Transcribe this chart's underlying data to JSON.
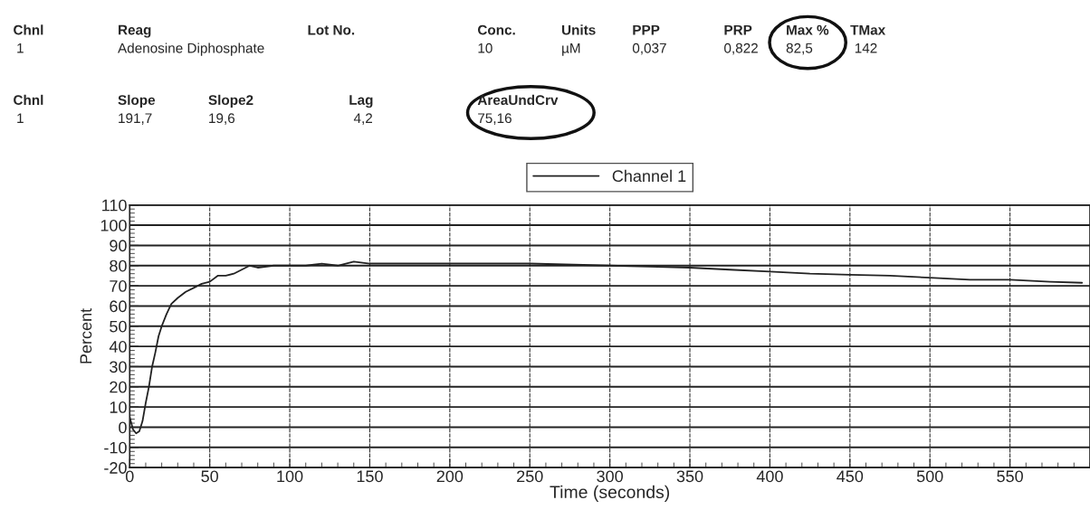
{
  "chart_data": {
    "type": "line",
    "xlabel": "Time (seconds)",
    "ylabel": "Percent",
    "x": [
      0,
      2,
      4,
      6,
      8,
      10,
      12,
      14,
      16,
      18,
      20,
      23,
      26,
      30,
      35,
      40,
      45,
      50,
      55,
      60,
      65,
      70,
      75,
      80,
      90,
      100,
      110,
      120,
      130,
      140,
      150,
      175,
      200,
      250,
      300,
      325,
      350,
      375,
      400,
      425,
      450,
      475,
      500,
      525,
      550,
      575,
      595
    ],
    "series": [
      {
        "name": "Channel 1",
        "color": "#222222",
        "values": [
          5,
          -1,
          -3,
          -2,
          3,
          12,
          20,
          30,
          37,
          45,
          50,
          56,
          61,
          64,
          67,
          69,
          71,
          72,
          75,
          75,
          76,
          78,
          80,
          79,
          80,
          80,
          80,
          81,
          80,
          82,
          81,
          81,
          81,
          81,
          80,
          79.5,
          79,
          78,
          77,
          76,
          75.5,
          75,
          74,
          73,
          73,
          72,
          71.5
        ]
      }
    ],
    "xlim": [
      0,
      600
    ],
    "xticks": [
      0,
      50,
      100,
      150,
      200,
      250,
      300,
      350,
      400,
      450,
      500,
      550
    ],
    "ylim": [
      -20,
      110
    ],
    "yticks": [
      -20,
      -10,
      0,
      10,
      20,
      30,
      40,
      50,
      60,
      70,
      80,
      90,
      100,
      110
    ],
    "grid": true,
    "legend": "top",
    "marker": "none",
    "line_style": "solid",
    "annotations": [
      "Chnl",
      "Reag",
      "Lot No.",
      "Conc.",
      "Units",
      "PPP",
      "PRP",
      "Max %",
      "TMax",
      "1",
      "Adenosine Diphosphate",
      "10",
      "µM",
      "0,037",
      "0,822",
      "82,5",
      "142",
      "Chnl",
      "Slope",
      "Slope2",
      "Lag",
      "AreaUndCrv",
      "1",
      "191,7",
      "19,6",
      "4,2",
      "75,16"
    ]
  }
}
